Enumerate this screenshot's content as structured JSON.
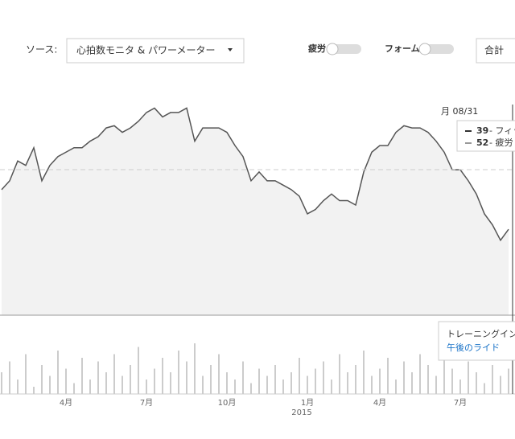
{
  "ui": {
    "source_label": "ソース:",
    "source_value": "心拍数モニタ & パワーメーター",
    "toggles": [
      "疲労",
      "フォーム"
    ],
    "total": "合計"
  },
  "chart_data": {
    "type": "line",
    "categories": [
      null,
      null,
      null,
      null,
      null,
      null,
      null,
      null,
      "4月",
      null,
      null,
      null,
      null,
      null,
      null,
      null,
      null,
      null,
      "7月",
      null,
      null,
      null,
      null,
      null,
      null,
      null,
      null,
      null,
      "10月",
      null,
      null,
      null,
      null,
      null,
      null,
      null,
      null,
      null,
      "1月",
      null,
      null,
      null,
      null,
      null,
      null,
      null,
      null,
      "4月",
      null,
      null,
      null,
      null,
      null,
      null,
      null,
      null,
      null,
      "7月",
      null,
      null,
      null,
      null,
      null,
      null
    ],
    "year_label": "2015",
    "ylim": [
      0,
      100
    ],
    "y2lim": [
      0,
      100
    ],
    "series": [
      {
        "type": "line",
        "color": "#555555",
        "fill": "#f2f2f2",
        "values": [
          57,
          61,
          70,
          68,
          76,
          61,
          68,
          72,
          74,
          76,
          76,
          79,
          81,
          85,
          86,
          83,
          85,
          88,
          92,
          94,
          90,
          92,
          92,
          94,
          79,
          85,
          85,
          85,
          83,
          77,
          72,
          61,
          65,
          61,
          61,
          59,
          57,
          54,
          46,
          48,
          52,
          55,
          52,
          52,
          50,
          65,
          74,
          77,
          77,
          83,
          86,
          85,
          85,
          83,
          79,
          74,
          66,
          66,
          61,
          55,
          46,
          41,
          34,
          39
        ]
      },
      {
        "type": "bar",
        "axis": "y2",
        "color": "#999999",
        "values": [
          30,
          45,
          20,
          55,
          10,
          40,
          25,
          60,
          35,
          15,
          50,
          20,
          45,
          30,
          55,
          25,
          40,
          65,
          20,
          35,
          50,
          30,
          60,
          45,
          70,
          25,
          40,
          55,
          30,
          20,
          45,
          15,
          35,
          25,
          40,
          20,
          30,
          50,
          25,
          35,
          45,
          20,
          55,
          30,
          40,
          60,
          25,
          35,
          50,
          20,
          45,
          30,
          55,
          40,
          25,
          60,
          35,
          20,
          45,
          30,
          15,
          40,
          25,
          35
        ]
      }
    ]
  },
  "tooltip": {
    "title": "月 08/31",
    "items": [
      {
        "value": 39,
        "name": "- フィッ",
        "color": "#333333"
      },
      {
        "value": 52,
        "name": "- 疲労",
        "color": "#999999"
      }
    ]
  },
  "tooltip2": {
    "title": "トレーニングインパ",
    "link": "午後のライド"
  }
}
